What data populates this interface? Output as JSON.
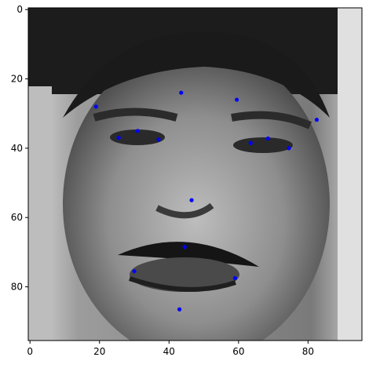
{
  "chart_data": {
    "type": "scatter",
    "title": "",
    "xlabel": "",
    "ylabel": "",
    "xlim": [
      -0.5,
      95.5
    ],
    "ylim": [
      95.5,
      -0.5
    ],
    "x_ticks": [
      0,
      20,
      40,
      60,
      80
    ],
    "y_ticks": [
      0,
      20,
      40,
      60,
      80
    ],
    "x_tick_labels": [
      "0",
      "20",
      "40",
      "60",
      "80"
    ],
    "y_tick_labels": [
      "0",
      "20",
      "40",
      "60",
      "80"
    ],
    "grid": false,
    "background": "grayscale face image (96x96 pixels)",
    "marker_color": "#0000ff",
    "series": [
      {
        "name": "facial keypoints",
        "points": [
          {
            "label": "left-eye-center",
            "x": 31,
            "y": 35
          },
          {
            "label": "left-eye-outer",
            "x": 25.5,
            "y": 37
          },
          {
            "label": "left-eye-inner",
            "x": 37,
            "y": 37.5
          },
          {
            "label": "left-eyebrow-outer",
            "x": 19,
            "y": 28
          },
          {
            "label": "left-eyebrow-inner",
            "x": 43.5,
            "y": 24
          },
          {
            "label": "right-eyebrow-inner",
            "x": 59.5,
            "y": 26
          },
          {
            "label": "right-eyebrow-outer",
            "x": 82.5,
            "y": 31.8
          },
          {
            "label": "right-eye-center",
            "x": 68.5,
            "y": 37.2
          },
          {
            "label": "right-eye-inner",
            "x": 63.5,
            "y": 38.5
          },
          {
            "label": "right-eye-outer",
            "x": 74.5,
            "y": 40
          },
          {
            "label": "nose-tip",
            "x": 46.5,
            "y": 55
          },
          {
            "label": "mouth-top-lip",
            "x": 44.5,
            "y": 68.5
          },
          {
            "label": "mouth-left-corner",
            "x": 30,
            "y": 75.5
          },
          {
            "label": "mouth-right-corner",
            "x": 59,
            "y": 77.5
          },
          {
            "label": "mouth-bottom-lip",
            "x": 43,
            "y": 86.5
          }
        ]
      }
    ]
  }
}
